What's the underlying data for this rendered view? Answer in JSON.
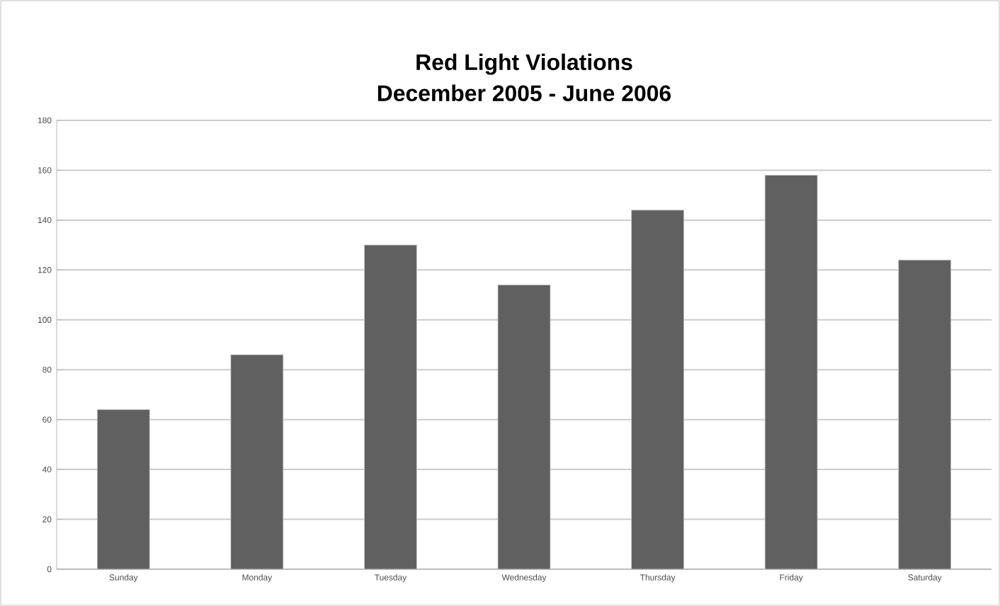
{
  "chart_data": {
    "type": "bar",
    "title": "Red Light Violations",
    "subtitle": "December 2005 - June 2006",
    "categories": [
      "Sunday",
      "Monday",
      "Tuesday",
      "Wednesday",
      "Thursday",
      "Friday",
      "Saturday"
    ],
    "values": [
      64,
      86,
      130,
      114,
      144,
      158,
      124
    ],
    "color": "#606060",
    "ylim": [
      0,
      180
    ],
    "yticks": [
      0,
      20,
      40,
      60,
      80,
      100,
      120,
      140,
      160,
      180
    ],
    "grid": "y"
  }
}
